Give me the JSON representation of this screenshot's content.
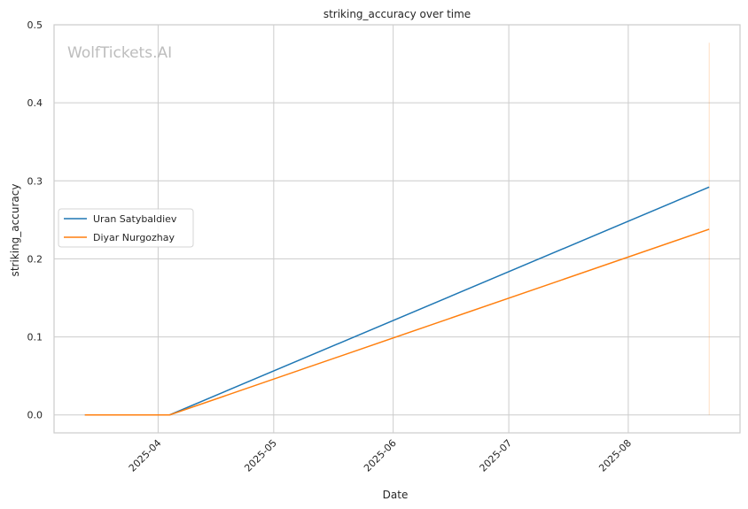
{
  "watermark": "WolfTickets.AI",
  "chart_data": {
    "type": "line",
    "title": "striking_accuracy over time",
    "xlabel": "Date",
    "ylabel": "striking_accuracy",
    "x_ticks": [
      "2025-04-01",
      "2025-05-01",
      "2025-06-01",
      "2025-07-01",
      "2025-08-01"
    ],
    "x_tick_labels": [
      "2025-04",
      "2025-05",
      "2025-06",
      "2025-07",
      "2025-08"
    ],
    "xlim": [
      "2025-03-05",
      "2025-08-30"
    ],
    "ylim": [
      -0.023,
      0.5
    ],
    "y_ticks": [
      0.0,
      0.1,
      0.2,
      0.3,
      0.4,
      0.5
    ],
    "y_tick_labels": [
      "0.0",
      "0.1",
      "0.2",
      "0.3",
      "0.4",
      "0.5"
    ],
    "grid": true,
    "legend_position": "center-left",
    "series": [
      {
        "name": "Uran Satybaldiev",
        "color": "#1f77b4",
        "x": [
          "2025-03-13",
          "2025-04-04",
          "2025-08-22"
        ],
        "y": [
          0.0,
          0.0,
          0.292
        ]
      },
      {
        "name": "Diyar Nurgozhay",
        "color": "#ff7f0e",
        "x": [
          "2025-03-13",
          "2025-04-04",
          "2025-08-22"
        ],
        "y": [
          0.0,
          0.0,
          0.238
        ]
      }
    ],
    "annotations": [
      {
        "type": "vertical-line",
        "x": "2025-08-22",
        "y_range": [
          0.0,
          0.477
        ],
        "color": "#ff7f0e"
      }
    ]
  }
}
